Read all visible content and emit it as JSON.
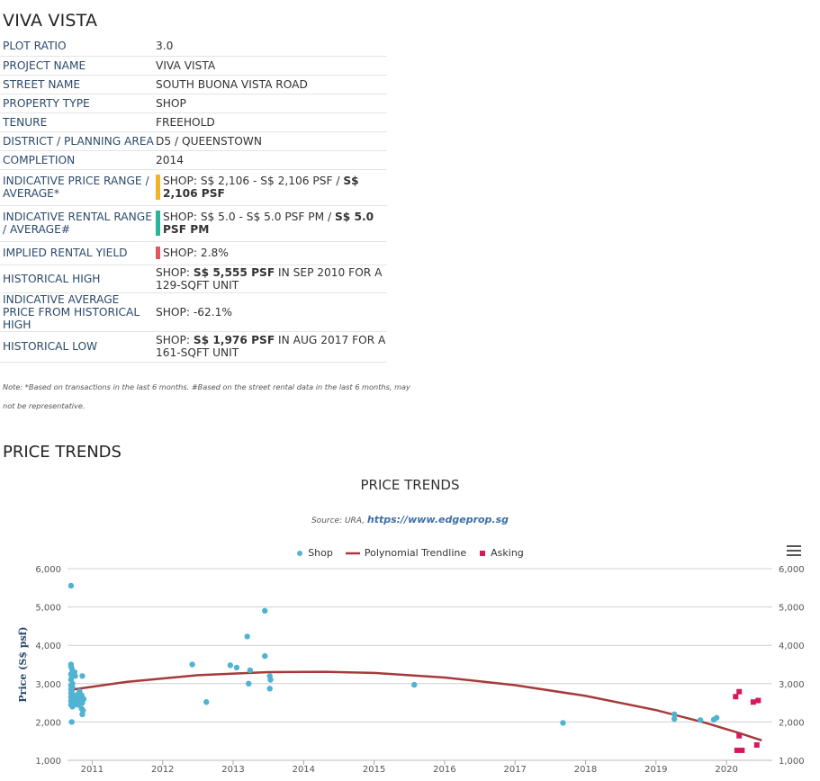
{
  "title": "VIVA VISTA",
  "info_rows": [
    {
      "key": "PLOT RATIO",
      "value": "3.0"
    },
    {
      "key": "PROJECT NAME",
      "value": "VIVA VISTA"
    },
    {
      "key": "STREET NAME",
      "value": "SOUTH BUONA VISTA ROAD"
    },
    {
      "key": "PROPERTY TYPE",
      "value": "SHOP"
    },
    {
      "key": "TENURE",
      "value": "FREEHOLD"
    },
    {
      "key": "DISTRICT / PLANNING AREA",
      "value": "D5 / QUEENSTOWN"
    },
    {
      "key": "COMPLETION",
      "value": "2014"
    },
    {
      "key": "INDICATIVE PRICE RANGE / AVERAGE*",
      "value_pre": "SHOP: S$ 2,106 - S$ 2,106 PSF / ",
      "value_bold": "S$ 2,106 PSF",
      "value_post": "",
      "indicator": "#f0b429"
    },
    {
      "key": "INDICATIVE RENTAL RANGE / AVERAGE#",
      "value_pre": "SHOP: S$ 5.0 - S$ 5.0 PSF PM / ",
      "value_bold": "S$ 5.0 PSF PM",
      "value_post": "",
      "indicator": "#2bb39b"
    },
    {
      "key": "IMPLIED RENTAL YIELD",
      "value": "SHOP: 2.8%",
      "indicator": "#e05763"
    },
    {
      "key": "HISTORICAL HIGH",
      "value_pre": "SHOP: ",
      "value_bold": "S$ 5,555 PSF",
      "value_post": " IN SEP 2010 FOR A 129-SQFT UNIT"
    },
    {
      "key": "INDICATIVE AVERAGE PRICE FROM HISTORICAL HIGH",
      "value": "SHOP: -62.1%"
    },
    {
      "key": "HISTORICAL LOW",
      "value_pre": "SHOP: ",
      "value_bold": "S$ 1,976 PSF",
      "value_post": " IN AUG 2017 FOR A 161-SQFT UNIT"
    }
  ],
  "note": "Note: *Based on transactions in the last 6 months. #Based on the street rental data in the last 6 months, may not be representative.",
  "section_title": "PRICE TRENDS",
  "colors": {
    "shop": "#4fb3d1",
    "trend": "#a63a3a",
    "asking": "#d6185c"
  },
  "chart_data": {
    "type": "scatter",
    "title": "PRICE TRENDS",
    "source_prefix": "Source: URA, ",
    "source_link": "https://www.edgeprop.sg",
    "ylabel": "Price (S$ psf)",
    "ylim": [
      1000,
      6000
    ],
    "yticks": [
      1000,
      2000,
      3000,
      4000,
      5000,
      6000
    ],
    "ytick_labels": [
      "1,000",
      "2,000",
      "3,000",
      "4,000",
      "5,000",
      "6,000"
    ],
    "xlim": [
      2010.65,
      2020.65
    ],
    "xticks": [
      2011,
      2012,
      2013,
      2014,
      2015,
      2016,
      2017,
      2018,
      2019,
      2020
    ],
    "xtick_labels": [
      "2011",
      "2012",
      "2013",
      "2014",
      "2015",
      "2016",
      "2017",
      "2018",
      "2019",
      "2020"
    ],
    "grid": true,
    "legend_position": "top-center",
    "series": [
      {
        "name": "Shop",
        "kind": "scatter",
        "points": [
          [
            2010.7,
            5555
          ],
          [
            2010.7,
            3500
          ],
          [
            2010.7,
            3450
          ],
          [
            2010.71,
            3400
          ],
          [
            2010.72,
            3300
          ],
          [
            2010.7,
            3250
          ],
          [
            2010.71,
            3200
          ],
          [
            2010.7,
            3100
          ],
          [
            2010.72,
            3000
          ],
          [
            2010.7,
            2950
          ],
          [
            2010.72,
            2900
          ],
          [
            2010.7,
            2850
          ],
          [
            2010.71,
            2800
          ],
          [
            2010.7,
            2750
          ],
          [
            2010.73,
            2700
          ],
          [
            2010.7,
            2650
          ],
          [
            2010.72,
            2600
          ],
          [
            2010.7,
            2550
          ],
          [
            2010.71,
            2500
          ],
          [
            2010.7,
            2450
          ],
          [
            2010.72,
            2400
          ],
          [
            2010.71,
            2000
          ],
          [
            2010.75,
            3300
          ],
          [
            2010.76,
            3200
          ],
          [
            2010.78,
            2700
          ],
          [
            2010.76,
            2600
          ],
          [
            2010.77,
            2500
          ],
          [
            2010.75,
            2450
          ],
          [
            2010.82,
            2800
          ],
          [
            2010.8,
            2700
          ],
          [
            2010.83,
            2650
          ],
          [
            2010.81,
            2600
          ],
          [
            2010.84,
            2550
          ],
          [
            2010.82,
            2500
          ],
          [
            2010.8,
            2450
          ],
          [
            2010.86,
            3200
          ],
          [
            2010.85,
            2700
          ],
          [
            2010.88,
            2600
          ],
          [
            2010.86,
            2500
          ],
          [
            2010.85,
            2350
          ],
          [
            2010.87,
            2300
          ],
          [
            2010.86,
            2200
          ],
          [
            2012.42,
            3500
          ],
          [
            2012.62,
            2520
          ],
          [
            2012.96,
            3480
          ],
          [
            2013.05,
            3420
          ],
          [
            2013.2,
            4230
          ],
          [
            2013.24,
            3350
          ],
          [
            2013.22,
            3000
          ],
          [
            2013.45,
            4900
          ],
          [
            2013.45,
            3720
          ],
          [
            2013.52,
            3200
          ],
          [
            2013.53,
            3100
          ],
          [
            2013.52,
            2870
          ],
          [
            2015.57,
            2970
          ],
          [
            2017.68,
            1976
          ],
          [
            2019.26,
            2200
          ],
          [
            2019.26,
            2080
          ],
          [
            2019.63,
            2050
          ],
          [
            2019.82,
            2060
          ],
          [
            2019.86,
            2110
          ]
        ]
      },
      {
        "name": "Polynomial Trendline",
        "kind": "line",
        "points": [
          [
            2010.7,
            2840
          ],
          [
            2011.5,
            3050
          ],
          [
            2012.5,
            3220
          ],
          [
            2013.5,
            3300
          ],
          [
            2014.3,
            3310
          ],
          [
            2015.0,
            3280
          ],
          [
            2016.0,
            3160
          ],
          [
            2017.0,
            2960
          ],
          [
            2018.0,
            2680
          ],
          [
            2019.0,
            2310
          ],
          [
            2019.7,
            1980
          ],
          [
            2020.2,
            1700
          ],
          [
            2020.4,
            1580
          ],
          [
            2020.5,
            1520
          ]
        ]
      },
      {
        "name": "Asking",
        "kind": "scatter",
        "points": [
          [
            2020.13,
            2660
          ],
          [
            2020.18,
            2790
          ],
          [
            2020.18,
            1640
          ],
          [
            2020.15,
            1260
          ],
          [
            2020.22,
            1260
          ],
          [
            2020.38,
            2520
          ],
          [
            2020.45,
            2560
          ],
          [
            2020.43,
            1400
          ]
        ]
      }
    ]
  }
}
